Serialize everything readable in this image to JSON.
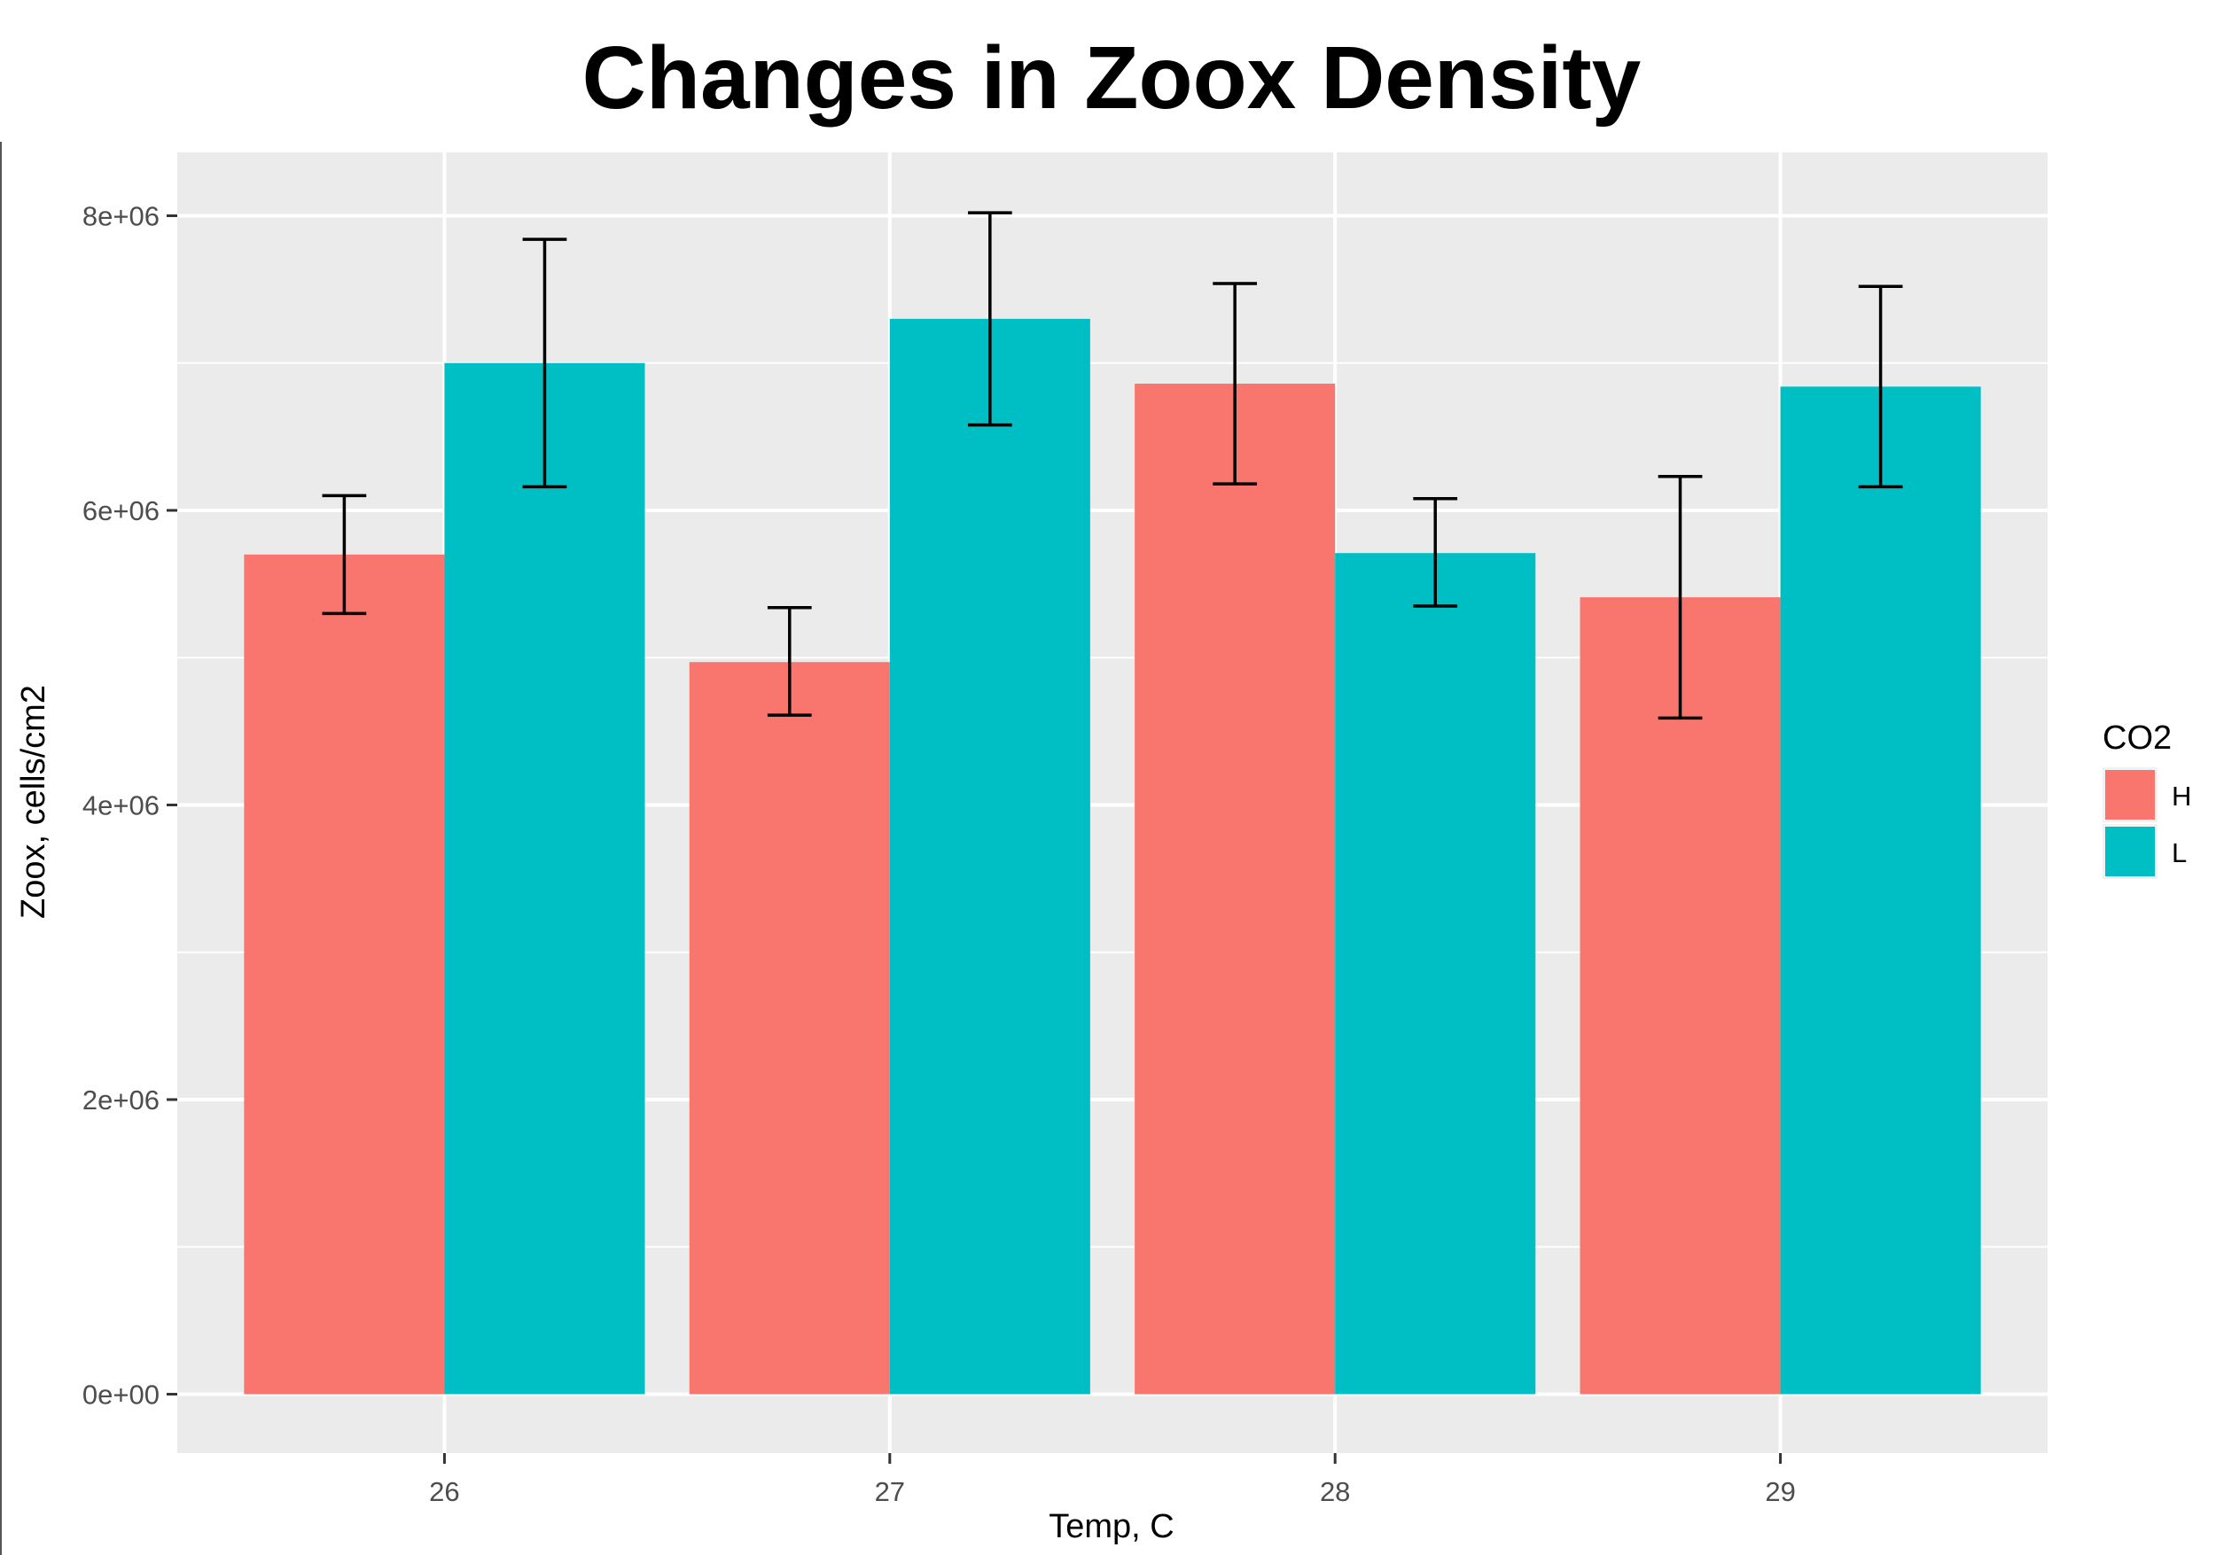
{
  "chart_data": {
    "type": "bar",
    "title": "Changes in Zoox Density",
    "xlabel": "Temp, C",
    "ylabel": "Zoox, cells/cm2",
    "categories": [
      "26",
      "27",
      "28",
      "29"
    ],
    "y_ticks": [
      0,
      2000000,
      4000000,
      6000000,
      8000000
    ],
    "y_tick_labels": [
      "0e+00",
      "2e+06",
      "4e+06",
      "6e+06",
      "8e+06"
    ],
    "ylim": [
      -400000,
      8430000
    ],
    "grid": true,
    "legend": {
      "title": "CO2",
      "position": "right"
    },
    "series": [
      {
        "name": "H",
        "color": "#F8766D",
        "values": [
          5700000,
          4970000,
          6860000,
          5410000
        ],
        "error_low": [
          5300000,
          4610000,
          6180000,
          4590000
        ],
        "error_high": [
          6100000,
          5340000,
          7540000,
          6230000
        ]
      },
      {
        "name": "L",
        "color": "#00BFC4",
        "values": [
          7000000,
          7300000,
          5710000,
          6840000
        ],
        "error_low": [
          6160000,
          6580000,
          5350000,
          6160000
        ],
        "error_high": [
          7840000,
          8020000,
          6080000,
          7520000
        ]
      }
    ]
  }
}
